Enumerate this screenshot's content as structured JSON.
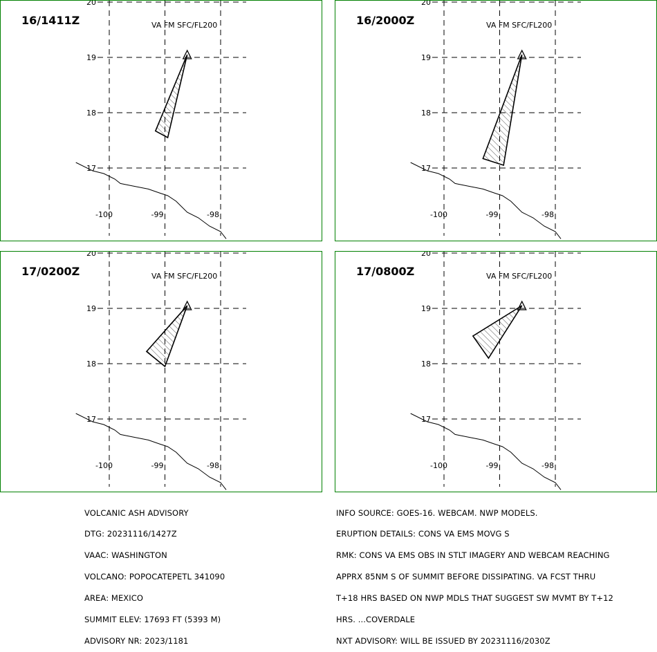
{
  "panel_header": "VA FM SFC/FL200",
  "panels": [
    {
      "time": "16/1411Z",
      "polygon": [
        [
          -98.6,
          19.05
        ],
        [
          -99.17,
          17.67
        ],
        [
          -98.95,
          17.55
        ]
      ]
    },
    {
      "time": "16/2000Z",
      "polygon": [
        [
          -98.6,
          19.05
        ],
        [
          -99.3,
          17.17
        ],
        [
          -98.93,
          17.05
        ]
      ]
    },
    {
      "time": "17/0200Z",
      "polygon": [
        [
          -98.6,
          19.05
        ],
        [
          -99.33,
          18.22
        ],
        [
          -99.0,
          17.95
        ]
      ]
    },
    {
      "time": "17/0800Z",
      "polygon": [
        [
          -98.6,
          19.05
        ],
        [
          -99.48,
          18.5
        ],
        [
          -99.2,
          18.1
        ]
      ]
    }
  ],
  "grid": {
    "lon_ticks": [
      "-100",
      "-99",
      "-98"
    ],
    "lat_ticks": [
      "20",
      "19",
      "18",
      "17"
    ]
  },
  "volcano_label": "∆",
  "coastline": [
    [
      -100.6,
      17.1
    ],
    [
      -100.3,
      16.95
    ],
    [
      -100.1,
      16.9
    ],
    [
      -100.0,
      16.85
    ],
    [
      -99.9,
      16.8
    ],
    [
      -99.8,
      16.72
    ],
    [
      -99.6,
      16.68
    ],
    [
      -99.3,
      16.62
    ],
    [
      -99.1,
      16.55
    ],
    [
      -98.95,
      16.5
    ],
    [
      -98.8,
      16.4
    ],
    [
      -98.6,
      16.2
    ],
    [
      -98.4,
      16.1
    ],
    [
      -98.2,
      15.95
    ],
    [
      -98.0,
      15.85
    ],
    [
      -97.9,
      15.72
    ]
  ],
  "left_text": [
    "VOLCANIC ASH ADVISORY",
    "DTG: 20231116/1427Z",
    "VAAC: WASHINGTON",
    "VOLCANO: POPOCATEPETL 341090",
    "AREA: MEXICO",
    "SUMMIT ELEV: 17693 FT (5393 M)",
    "ADVISORY NR: 2023/1181"
  ],
  "right_text": [
    "INFO SOURCE: GOES-16. WEBCAM. NWP MODELS.",
    "ERUPTION DETAILS: CONS VA EMS MOVG S",
    "RMK: CONS VA EMS OBS IN STLT IMAGERY AND WEBCAM REACHING",
    "APPRX 85NM S OF SUMMIT BEFORE DISSIPATING. VA FCST THRU",
    "T+18 HRS BASED ON NWP MDLS THAT SUGGEST SW MVMT BY T+12",
    "HRS. ...COVERDALE",
    "NXT ADVISORY: WILL BE ISSUED BY 20231116/2030Z"
  ]
}
